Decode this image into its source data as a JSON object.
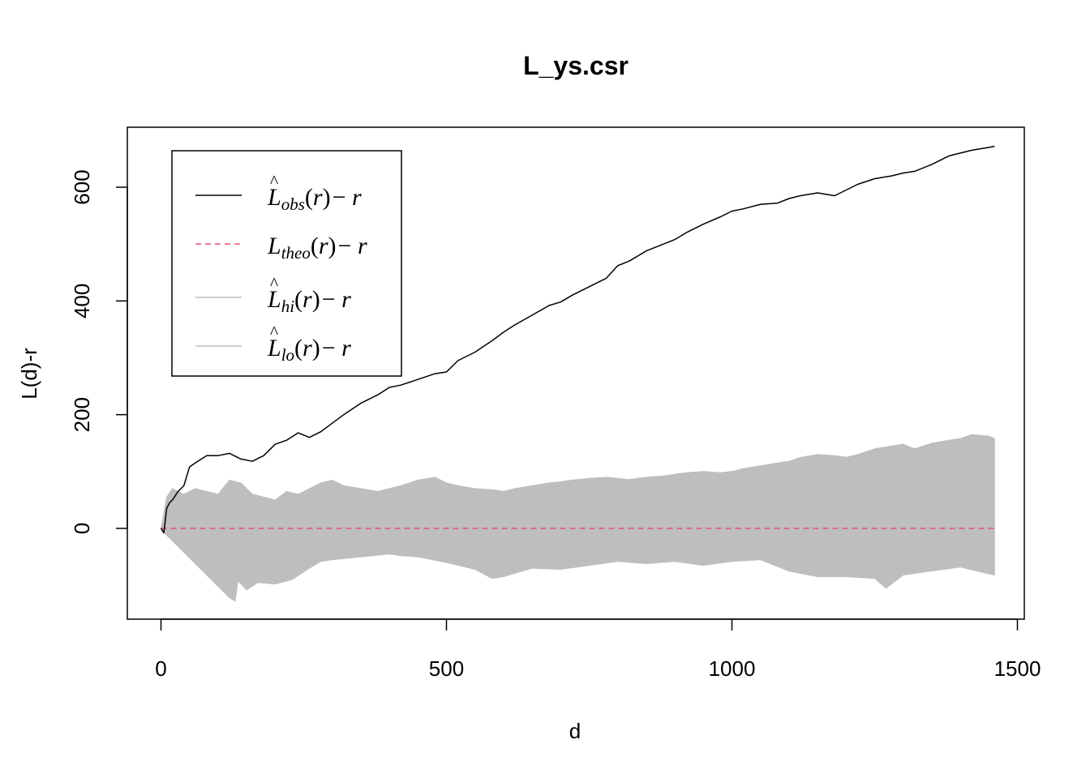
{
  "chart_data": {
    "type": "line",
    "title": "L_ys.csr",
    "xlabel": "d",
    "ylabel": "L(d)-r",
    "xlim": [
      0,
      1500
    ],
    "ylim": [
      -150,
      700
    ],
    "xticks": [
      0,
      500,
      1000,
      1500
    ],
    "yticks": [
      0,
      200,
      400,
      600
    ],
    "grid": false,
    "legend_position": "top-left",
    "legend": [
      {
        "base": "L",
        "hat": true,
        "sub": "obs",
        "arg": "(r)",
        "tail": "− r",
        "style": "solid",
        "color": "#000000"
      },
      {
        "base": "L",
        "hat": false,
        "sub": "theo",
        "arg": "(r)",
        "tail": "− r",
        "style": "dashed",
        "color": "#DF536B"
      },
      {
        "base": "L",
        "hat": true,
        "sub": "hi",
        "arg": "(r)",
        "tail": "− r",
        "style": "solid",
        "color": "#BEBEBE"
      },
      {
        "base": "L",
        "hat": true,
        "sub": "lo",
        "arg": "(r)",
        "tail": "− r",
        "style": "solid",
        "color": "#BEBEBE"
      }
    ],
    "colors": {
      "obs": "#000000",
      "theo": "#DF536B",
      "envelope": "#BEBEBE"
    },
    "series": [
      {
        "key": "obs",
        "x": [
          0,
          5,
          10,
          15,
          20,
          30,
          40,
          50,
          60,
          80,
          100,
          120,
          140,
          160,
          180,
          200,
          220,
          240,
          260,
          280,
          300,
          320,
          350,
          380,
          400,
          420,
          450,
          480,
          500,
          520,
          550,
          580,
          600,
          620,
          650,
          680,
          700,
          720,
          750,
          780,
          800,
          820,
          850,
          880,
          900,
          920,
          950,
          980,
          1000,
          1020,
          1050,
          1080,
          1100,
          1120,
          1150,
          1180,
          1200,
          1220,
          1250,
          1280,
          1300,
          1320,
          1350,
          1380,
          1400,
          1420,
          1450,
          1460
        ],
        "y": [
          0,
          -8,
          35,
          45,
          50,
          65,
          75,
          108,
          115,
          128,
          128,
          132,
          122,
          118,
          128,
          148,
          155,
          168,
          160,
          170,
          185,
          200,
          220,
          235,
          248,
          252,
          262,
          272,
          275,
          295,
          310,
          330,
          345,
          358,
          375,
          392,
          398,
          410,
          425,
          440,
          462,
          470,
          488,
          500,
          508,
          520,
          535,
          548,
          558,
          562,
          570,
          572,
          580,
          585,
          590,
          585,
          595,
          605,
          615,
          620,
          625,
          628,
          640,
          655,
          660,
          665,
          670,
          672
        ]
      },
      {
        "key": "theo",
        "x": [
          0,
          1460
        ],
        "y": [
          0,
          0
        ]
      },
      {
        "key": "hi",
        "x": [
          0,
          10,
          20,
          30,
          40,
          60,
          80,
          100,
          120,
          140,
          160,
          180,
          200,
          220,
          240,
          260,
          280,
          300,
          320,
          350,
          380,
          400,
          420,
          450,
          480,
          500,
          520,
          550,
          580,
          600,
          620,
          650,
          680,
          700,
          720,
          750,
          780,
          800,
          820,
          850,
          880,
          900,
          920,
          950,
          980,
          1000,
          1020,
          1050,
          1080,
          1100,
          1120,
          1150,
          1180,
          1200,
          1220,
          1250,
          1280,
          1300,
          1320,
          1350,
          1380,
          1400,
          1420,
          1450,
          1460
        ],
        "y": [
          0,
          55,
          70,
          65,
          60,
          70,
          65,
          60,
          85,
          80,
          60,
          55,
          50,
          65,
          60,
          70,
          80,
          85,
          75,
          70,
          65,
          70,
          75,
          85,
          90,
          80,
          75,
          70,
          68,
          65,
          70,
          75,
          80,
          82,
          85,
          88,
          90,
          88,
          86,
          90,
          92,
          95,
          98,
          100,
          98,
          100,
          105,
          110,
          115,
          118,
          125,
          130,
          128,
          125,
          130,
          140,
          145,
          148,
          140,
          150,
          155,
          158,
          165,
          162,
          158
        ]
      },
      {
        "key": "lo",
        "x": [
          0,
          10,
          20,
          40,
          60,
          80,
          100,
          120,
          130,
          135,
          150,
          170,
          200,
          230,
          260,
          280,
          300,
          350,
          400,
          420,
          450,
          500,
          550,
          580,
          600,
          650,
          700,
          750,
          800,
          850,
          900,
          950,
          1000,
          1050,
          1100,
          1150,
          1200,
          1250,
          1270,
          1300,
          1350,
          1400,
          1450,
          1460
        ],
        "y": [
          0,
          -12,
          -22,
          -42,
          -62,
          -82,
          -102,
          -122,
          -128,
          -92,
          -108,
          -95,
          -98,
          -90,
          -70,
          -58,
          -55,
          -50,
          -45,
          -48,
          -50,
          -60,
          -72,
          -88,
          -85,
          -70,
          -72,
          -65,
          -58,
          -62,
          -58,
          -65,
          -58,
          -55,
          -75,
          -85,
          -85,
          -88,
          -105,
          -82,
          -75,
          -68,
          -80,
          -82
        ]
      }
    ]
  }
}
